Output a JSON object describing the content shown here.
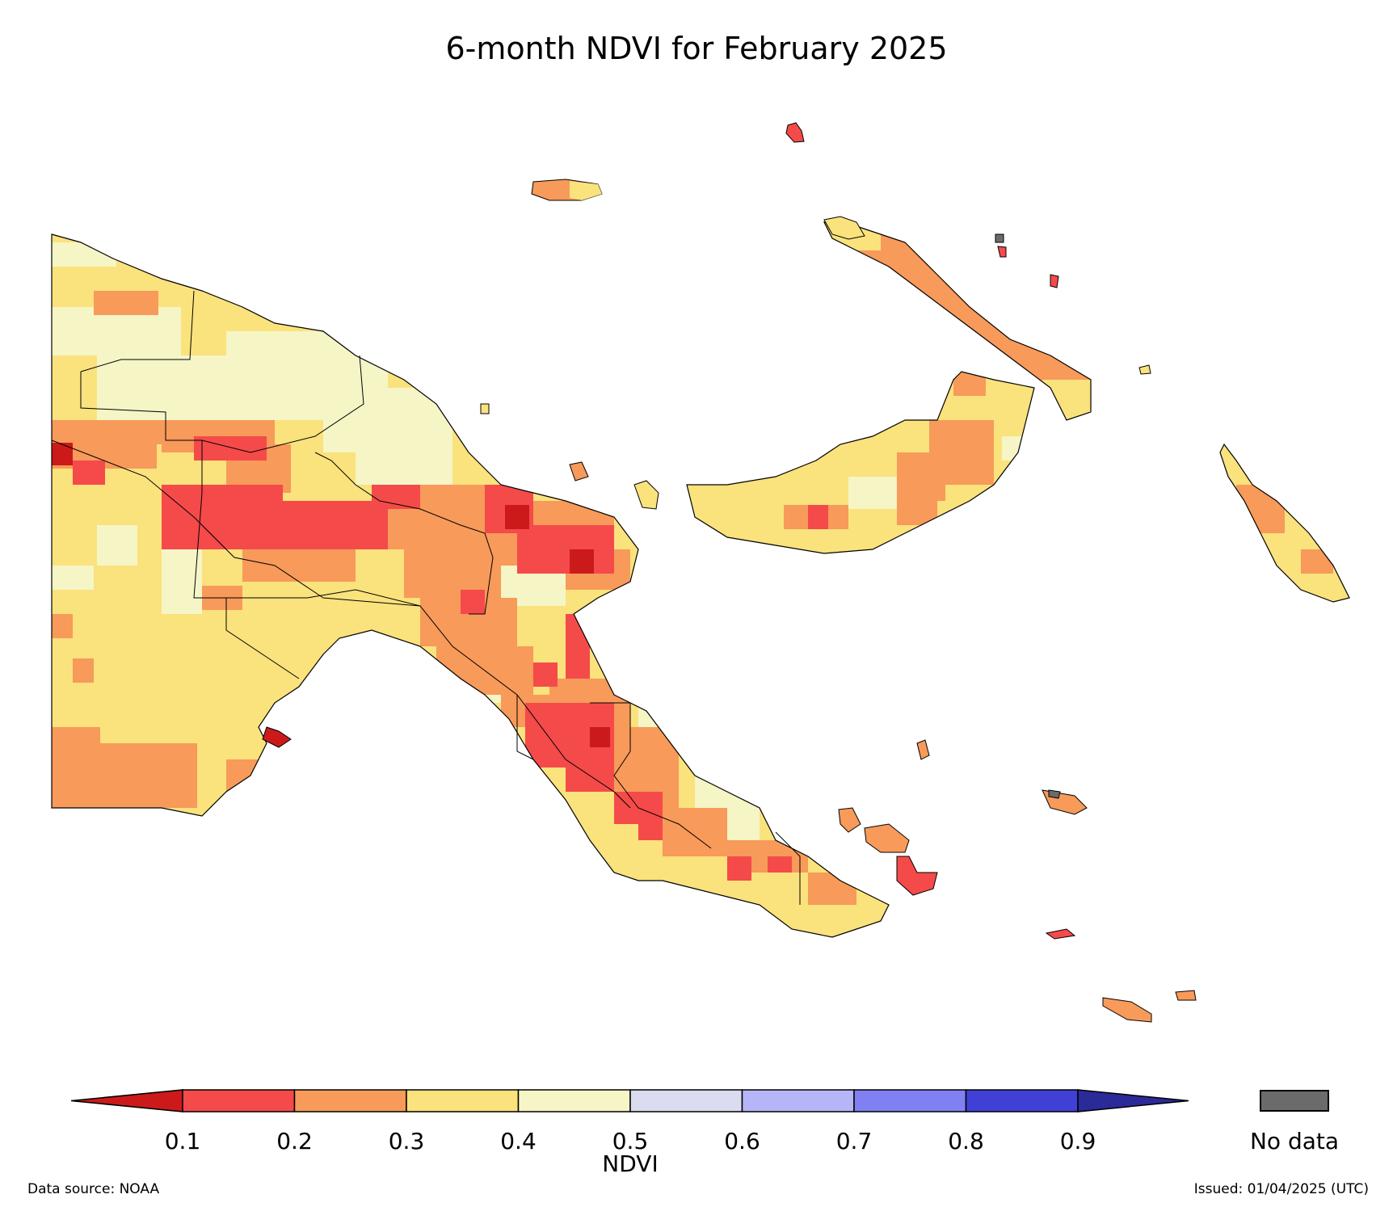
{
  "title": "6-month NDVI for February 2025",
  "legend": {
    "label": "NDVI",
    "ticks": [
      "0.1",
      "0.2",
      "0.3",
      "0.4",
      "0.5",
      "0.6",
      "0.7",
      "0.8",
      "0.9"
    ],
    "colors": [
      "#cc1a1a",
      "#f54a4a",
      "#f79a5a",
      "#fae27d",
      "#f5f5c6",
      "#dcdcf0",
      "#b5b5f7",
      "#8080f2",
      "#4040d6",
      "#2a2a99"
    ],
    "nodata_label": "No data",
    "nodata_color": "#6b6b6b"
  },
  "footer": {
    "source": "Data source: NOAA",
    "issued": "Issued: 01/04/2025 (UTC)"
  }
}
